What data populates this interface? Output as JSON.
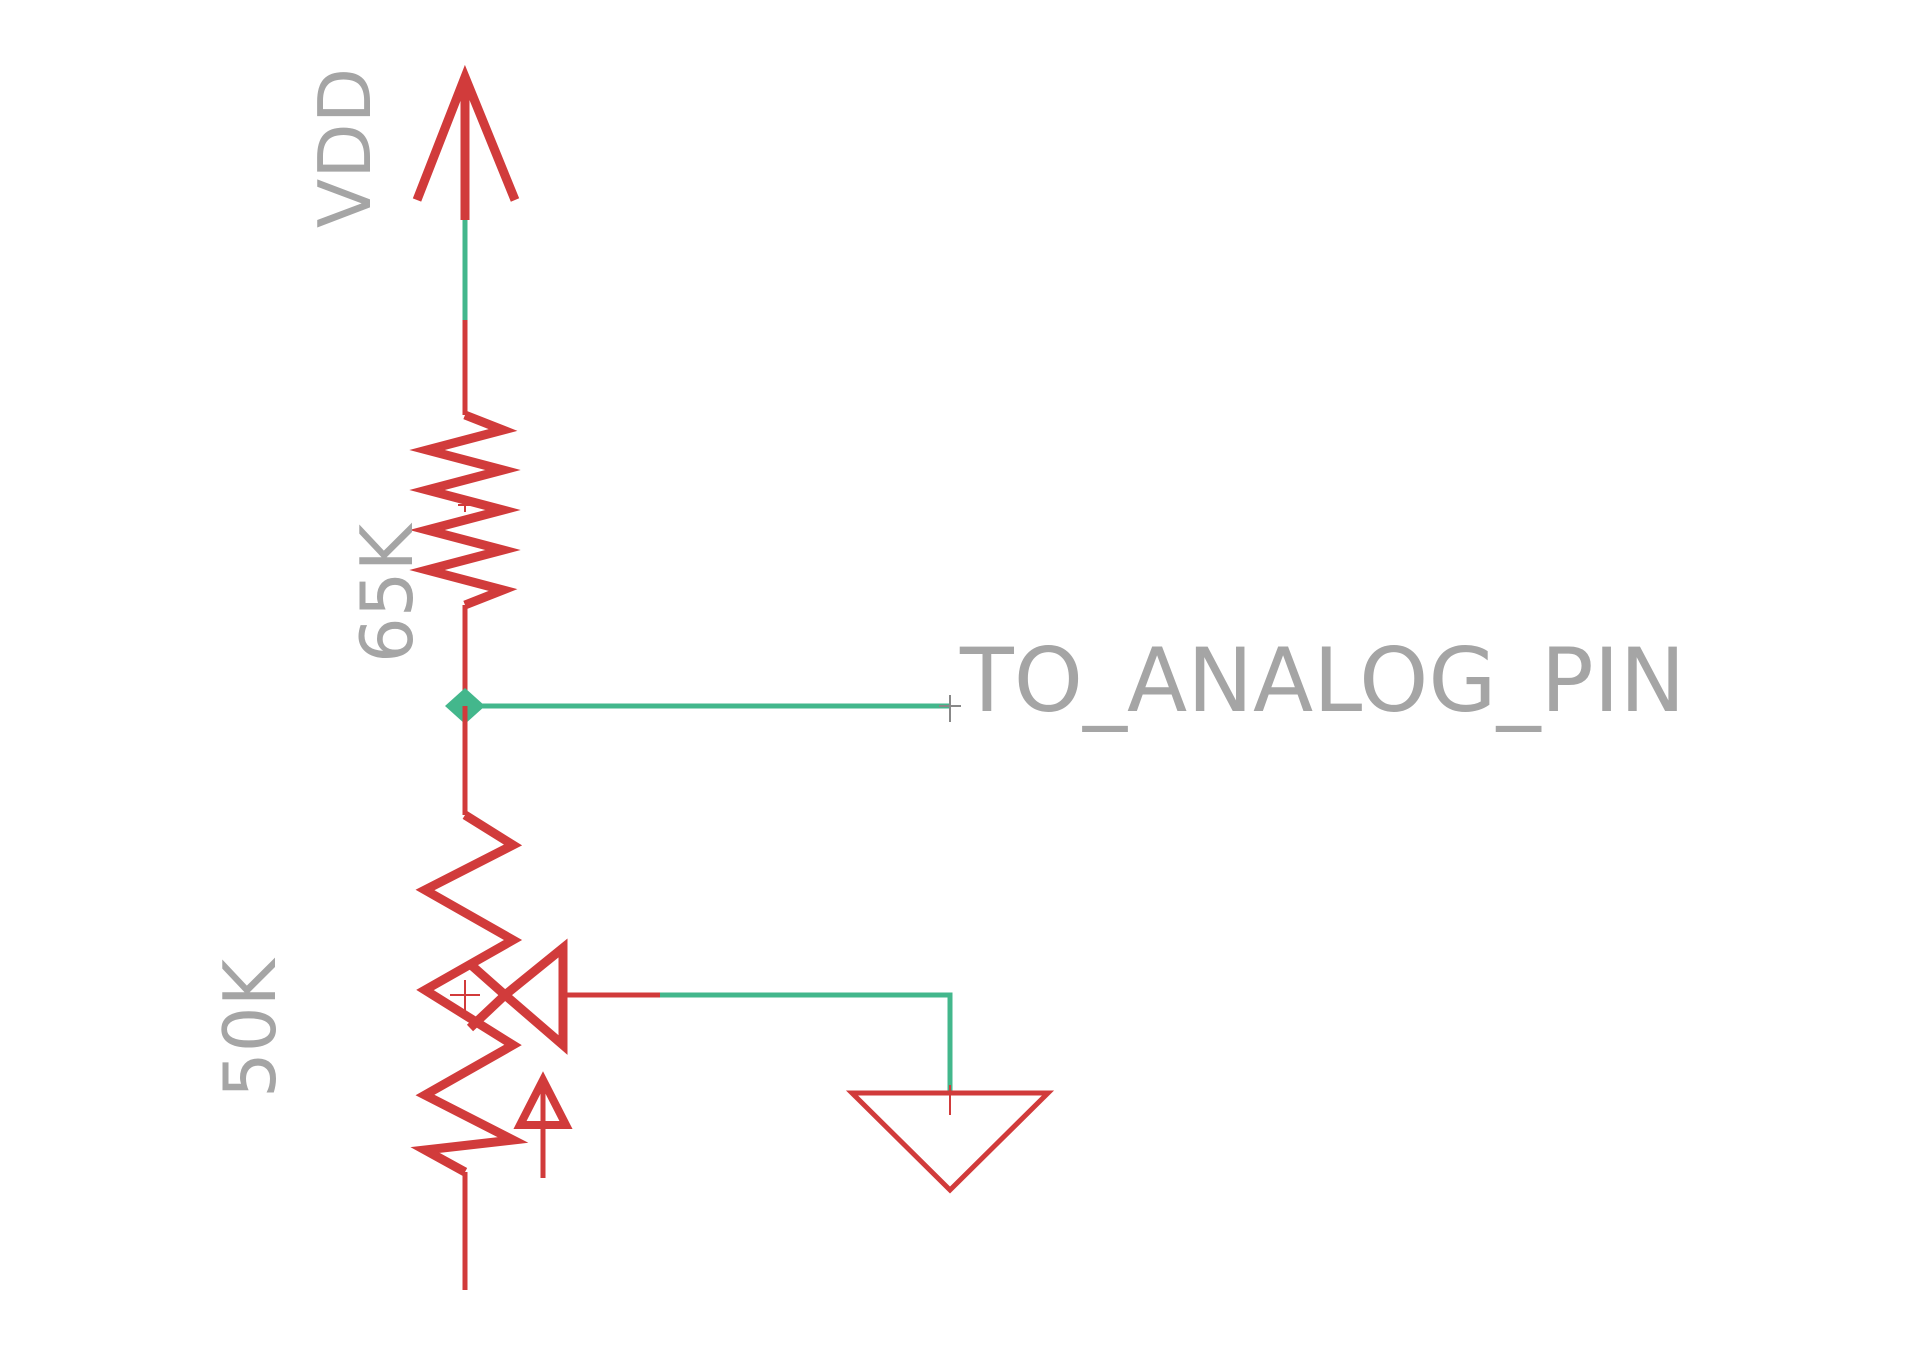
{
  "schematic": {
    "power_symbol": {
      "label": "VDD"
    },
    "resistor_fixed": {
      "value": "65K"
    },
    "thermistor": {
      "value": "50K"
    },
    "net_label": {
      "text": "TO_ANALOG_PIN"
    },
    "ground_symbol": {},
    "colors": {
      "component": "#d13b3b",
      "wire": "#43b78c",
      "text": "#a5a5a5",
      "junction": "#43b78c",
      "background": "#ffffff"
    }
  }
}
